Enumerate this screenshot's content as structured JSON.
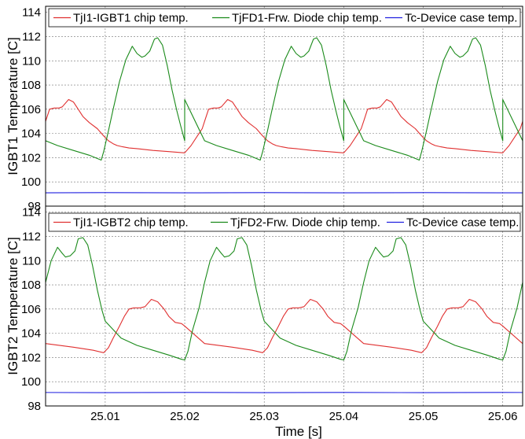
{
  "chart_data": [
    {
      "type": "line",
      "title": "",
      "xlabel": "",
      "ylabel": "IGBT1 Temperature [C]",
      "xlim": [
        25.0025,
        25.0625
      ],
      "ylim": [
        98,
        114.5
      ],
      "yticks": [
        98,
        100,
        102,
        104,
        106,
        108,
        110,
        112,
        114
      ],
      "grid": true,
      "legend_position": "top",
      "period": 0.02,
      "series": [
        {
          "name": "TjI1-IGBT1 chip temp.",
          "color": "#e03030",
          "x": [
            25.0,
            25.0008,
            25.0016,
            25.0022,
            25.0026,
            25.003,
            25.0036,
            25.0042,
            25.0046,
            25.0054,
            25.006,
            25.0066,
            25.0072,
            25.008,
            25.009,
            25.0098,
            25.0104,
            25.011,
            25.0115,
            25.0122,
            25.013,
            25.014,
            25.016,
            25.018,
            25.02
          ],
          "y": [
            102.4,
            103.0,
            103.8,
            104.4,
            105.2,
            106.0,
            106.1,
            106.1,
            106.2,
            106.8,
            106.6,
            106.0,
            105.4,
            104.9,
            104.4,
            103.8,
            103.4,
            103.15,
            103.0,
            102.9,
            102.8,
            102.75,
            102.6,
            102.5,
            102.4
          ]
        },
        {
          "name": "TjFD1-Frw. Diode chip temp.",
          "color": "#1a8a1a",
          "x": [
            25.0,
            25.0025,
            25.004,
            25.006,
            25.008,
            25.0095,
            25.0098,
            25.0104,
            25.011,
            25.0118,
            25.0126,
            25.0134,
            25.014,
            25.0146,
            25.015,
            25.0156,
            25.0162,
            25.0166,
            25.0172,
            25.0178,
            25.0184,
            25.019,
            25.0195,
            25.02
          ],
          "y": [
            106.8,
            103.4,
            103.0,
            102.6,
            102.2,
            101.8,
            102.5,
            104.2,
            106.0,
            108.3,
            110.1,
            111.2,
            110.6,
            110.3,
            110.4,
            110.8,
            111.8,
            111.9,
            111.3,
            109.6,
            107.6,
            105.9,
            104.6,
            103.4
          ]
        },
        {
          "name": "Tc-Device case temp.",
          "color": "#2020e0",
          "x": [
            25.0,
            25.01,
            25.02
          ],
          "y": [
            99.1,
            99.12,
            99.1
          ]
        }
      ]
    },
    {
      "type": "line",
      "title": "",
      "xlabel": "Time [s]",
      "ylabel": "IGBT2 Temperature [C]",
      "xlim": [
        25.0025,
        25.0625
      ],
      "ylim": [
        98,
        114.5
      ],
      "yticks": [
        98,
        100,
        102,
        104,
        106,
        108,
        110,
        112,
        114
      ],
      "xticks": [
        25.01,
        25.02,
        25.03,
        25.04,
        25.05,
        25.06
      ],
      "xtick_labels": [
        "25.01",
        "25.02",
        "25.03",
        "25.04",
        "25.05",
        "25.06"
      ],
      "grid": true,
      "legend_position": "top",
      "period": 0.02,
      "series": [
        {
          "name": "TjI1-IGBT2 chip temp.",
          "color": "#e03030",
          "x": [
            25.0,
            25.0025,
            25.006,
            25.0085,
            25.0098,
            25.0104,
            25.011,
            25.0118,
            25.0124,
            25.013,
            25.0136,
            25.0144,
            25.015,
            25.0158,
            25.0166,
            25.0174,
            25.018,
            25.0188,
            25.0196,
            25.02
          ],
          "y": [
            104.6,
            103.15,
            102.85,
            102.6,
            102.4,
            102.8,
            103.6,
            104.6,
            105.4,
            106.0,
            106.1,
            106.1,
            106.2,
            106.8,
            106.6,
            106.0,
            105.4,
            104.9,
            104.8,
            104.6
          ]
        },
        {
          "name": "TjFD2-Frw. Diode chip temp.",
          "color": "#1a8a1a",
          "x": [
            25.0,
            25.0004,
            25.001,
            25.0018,
            25.0025,
            25.0032,
            25.004,
            25.0046,
            25.005,
            25.0056,
            25.0062,
            25.0066,
            25.0072,
            25.0078,
            25.0084,
            25.009,
            25.0096,
            25.01,
            25.012,
            25.014,
            25.016,
            25.018,
            25.0196,
            25.02
          ],
          "y": [
            101.8,
            102.5,
            104.3,
            106.1,
            108.2,
            110.0,
            111.1,
            110.6,
            110.3,
            110.4,
            110.8,
            111.8,
            111.9,
            111.3,
            109.6,
            107.6,
            105.9,
            105.0,
            103.6,
            103.0,
            102.6,
            102.2,
            101.85,
            101.8
          ]
        },
        {
          "name": "Tc-Device case temp.",
          "color": "#2020e0",
          "x": [
            25.0,
            25.01,
            25.02
          ],
          "y": [
            99.12,
            99.1,
            99.12
          ]
        }
      ]
    }
  ]
}
